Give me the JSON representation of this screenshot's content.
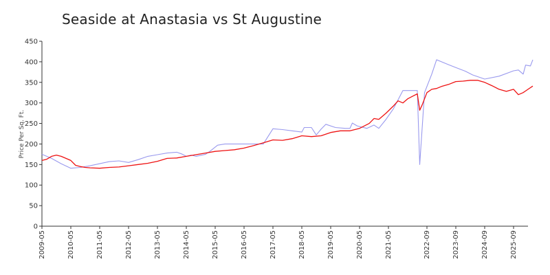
{
  "chart_data": {
    "type": "line",
    "title": "Seaside at Anastasia vs St Augustine",
    "xlabel": "",
    "ylabel": "Price Per Sq. Ft.",
    "ylim": [
      0,
      450
    ],
    "yticks": [
      0,
      50,
      100,
      150,
      200,
      250,
      300,
      350,
      400,
      450
    ],
    "xticks": [
      "2009-05",
      "2010-05",
      "2011-05",
      "2012-05",
      "2013-05",
      "2014-05",
      "2015-05",
      "2016-05",
      "2017-05",
      "2018-05",
      "2019-05",
      "2020-05",
      "2021-05",
      "2022-09",
      "2023-09",
      "2024-09",
      "2025-09"
    ],
    "xrange": [
      "2009-05",
      "2026-03"
    ],
    "grid": false,
    "series": [
      {
        "color": "#9999ee",
        "points": [
          [
            "2009-05",
            175
          ],
          [
            "2009-09",
            165
          ],
          [
            "2010-01",
            152
          ],
          [
            "2010-05",
            141
          ],
          [
            "2010-09",
            143
          ],
          [
            "2011-01",
            147
          ],
          [
            "2011-05",
            152
          ],
          [
            "2011-09",
            157
          ],
          [
            "2012-01",
            159
          ],
          [
            "2012-05",
            155
          ],
          [
            "2012-09",
            162
          ],
          [
            "2013-01",
            170
          ],
          [
            "2013-05",
            174
          ],
          [
            "2013-09",
            178
          ],
          [
            "2014-01",
            180
          ],
          [
            "2014-03",
            176
          ],
          [
            "2014-05",
            170
          ],
          [
            "2014-07",
            173
          ],
          [
            "2014-09",
            170
          ],
          [
            "2015-01",
            175
          ],
          [
            "2015-03",
            183
          ],
          [
            "2015-06",
            197
          ],
          [
            "2015-09",
            200
          ],
          [
            "2016-01",
            200
          ],
          [
            "2016-05",
            200
          ],
          [
            "2016-09",
            200
          ],
          [
            "2017-01",
            200
          ],
          [
            "2017-05",
            237
          ],
          [
            "2017-09",
            235
          ],
          [
            "2018-01",
            232
          ],
          [
            "2018-05",
            229
          ],
          [
            "2018-06",
            240
          ],
          [
            "2018-09",
            240
          ],
          [
            "2018-11",
            222
          ],
          [
            "2019-01",
            236
          ],
          [
            "2019-03",
            248
          ],
          [
            "2019-07",
            240
          ],
          [
            "2019-11",
            238
          ],
          [
            "2020-01",
            238
          ],
          [
            "2020-02",
            251
          ],
          [
            "2020-04",
            244
          ],
          [
            "2020-08",
            238
          ],
          [
            "2020-11",
            246
          ],
          [
            "2021-01",
            238
          ],
          [
            "2021-04",
            260
          ],
          [
            "2021-07",
            285
          ],
          [
            "2021-11",
            330
          ],
          [
            "2022-03",
            330
          ],
          [
            "2022-05",
            330
          ],
          [
            "2022-06",
            150
          ],
          [
            "2022-08",
            325
          ],
          [
            "2022-11",
            370
          ],
          [
            "2023-01",
            405
          ],
          [
            "2023-06",
            393
          ],
          [
            "2023-09",
            386
          ],
          [
            "2024-01",
            377
          ],
          [
            "2024-04",
            368
          ],
          [
            "2024-09",
            358
          ],
          [
            "2025-03",
            365
          ],
          [
            "2025-09",
            378
          ],
          [
            "2025-11",
            380
          ],
          [
            "2026-01",
            370
          ],
          [
            "2026-02",
            392
          ],
          [
            "2026-04",
            390
          ],
          [
            "2026-05",
            405
          ]
        ]
      },
      {
        "color": "#ee1111",
        "points": [
          [
            "2009-05",
            160
          ],
          [
            "2009-07",
            163
          ],
          [
            "2009-09",
            170
          ],
          [
            "2009-11",
            173
          ],
          [
            "2010-01",
            170
          ],
          [
            "2010-03",
            165
          ],
          [
            "2010-05",
            160
          ],
          [
            "2010-07",
            148
          ],
          [
            "2010-09",
            145
          ],
          [
            "2010-11",
            143
          ],
          [
            "2011-01",
            142
          ],
          [
            "2011-05",
            141
          ],
          [
            "2011-09",
            143
          ],
          [
            "2012-01",
            144
          ],
          [
            "2012-05",
            147
          ],
          [
            "2012-09",
            150
          ],
          [
            "2013-01",
            153
          ],
          [
            "2013-05",
            158
          ],
          [
            "2013-09",
            165
          ],
          [
            "2014-01",
            166
          ],
          [
            "2014-05",
            170
          ],
          [
            "2014-09",
            174
          ],
          [
            "2015-01",
            178
          ],
          [
            "2015-05",
            182
          ],
          [
            "2015-09",
            184
          ],
          [
            "2016-01",
            186
          ],
          [
            "2016-05",
            190
          ],
          [
            "2016-09",
            196
          ],
          [
            "2017-01",
            203
          ],
          [
            "2017-05",
            210
          ],
          [
            "2017-09",
            209
          ],
          [
            "2018-01",
            213
          ],
          [
            "2018-05",
            220
          ],
          [
            "2018-09",
            218
          ],
          [
            "2019-01",
            220
          ],
          [
            "2019-05",
            228
          ],
          [
            "2019-09",
            232
          ],
          [
            "2020-01",
            232
          ],
          [
            "2020-05",
            238
          ],
          [
            "2020-09",
            250
          ],
          [
            "2020-11",
            262
          ],
          [
            "2021-01",
            260
          ],
          [
            "2021-04",
            275
          ],
          [
            "2021-07",
            292
          ],
          [
            "2021-09",
            305
          ],
          [
            "2021-11",
            300
          ],
          [
            "2022-01",
            310
          ],
          [
            "2022-03",
            316
          ],
          [
            "2022-05",
            322
          ],
          [
            "2022-06",
            282
          ],
          [
            "2022-07",
            295
          ],
          [
            "2022-09",
            325
          ],
          [
            "2022-11",
            333
          ],
          [
            "2023-01",
            335
          ],
          [
            "2023-03",
            340
          ],
          [
            "2023-06",
            345
          ],
          [
            "2023-09",
            352
          ],
          [
            "2023-12",
            353
          ],
          [
            "2024-03",
            355
          ],
          [
            "2024-06",
            355
          ],
          [
            "2024-09",
            350
          ],
          [
            "2024-12",
            342
          ],
          [
            "2025-03",
            333
          ],
          [
            "2025-06",
            328
          ],
          [
            "2025-09",
            333
          ],
          [
            "2025-11",
            320
          ],
          [
            "2026-01",
            325
          ],
          [
            "2026-03",
            333
          ],
          [
            "2026-05",
            341
          ]
        ]
      }
    ]
  }
}
